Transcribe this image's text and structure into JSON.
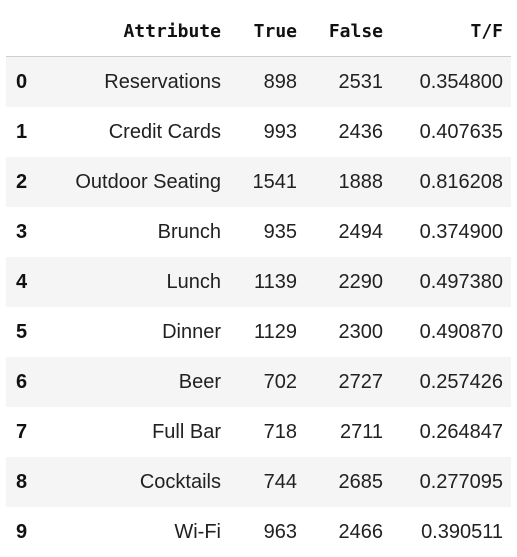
{
  "table": {
    "columns": [
      "",
      "Attribute",
      "True",
      "False",
      "T/F"
    ],
    "rows": [
      {
        "index": "0",
        "attribute": "Reservations",
        "true": "898",
        "false": "2531",
        "tf": "0.354800"
      },
      {
        "index": "1",
        "attribute": "Credit Cards",
        "true": "993",
        "false": "2436",
        "tf": "0.407635"
      },
      {
        "index": "2",
        "attribute": "Outdoor Seating",
        "true": "1541",
        "false": "1888",
        "tf": "0.816208"
      },
      {
        "index": "3",
        "attribute": "Brunch",
        "true": "935",
        "false": "2494",
        "tf": "0.374900"
      },
      {
        "index": "4",
        "attribute": "Lunch",
        "true": "1139",
        "false": "2290",
        "tf": "0.497380"
      },
      {
        "index": "5",
        "attribute": "Dinner",
        "true": "1129",
        "false": "2300",
        "tf": "0.490870"
      },
      {
        "index": "6",
        "attribute": "Beer",
        "true": "702",
        "false": "2727",
        "tf": "0.257426"
      },
      {
        "index": "7",
        "attribute": "Full Bar",
        "true": "718",
        "false": "2711",
        "tf": "0.264847"
      },
      {
        "index": "8",
        "attribute": "Cocktails",
        "true": "744",
        "false": "2685",
        "tf": "0.277095"
      },
      {
        "index": "9",
        "attribute": "Wi-Fi",
        "true": "963",
        "false": "2466",
        "tf": "0.390511"
      }
    ]
  }
}
